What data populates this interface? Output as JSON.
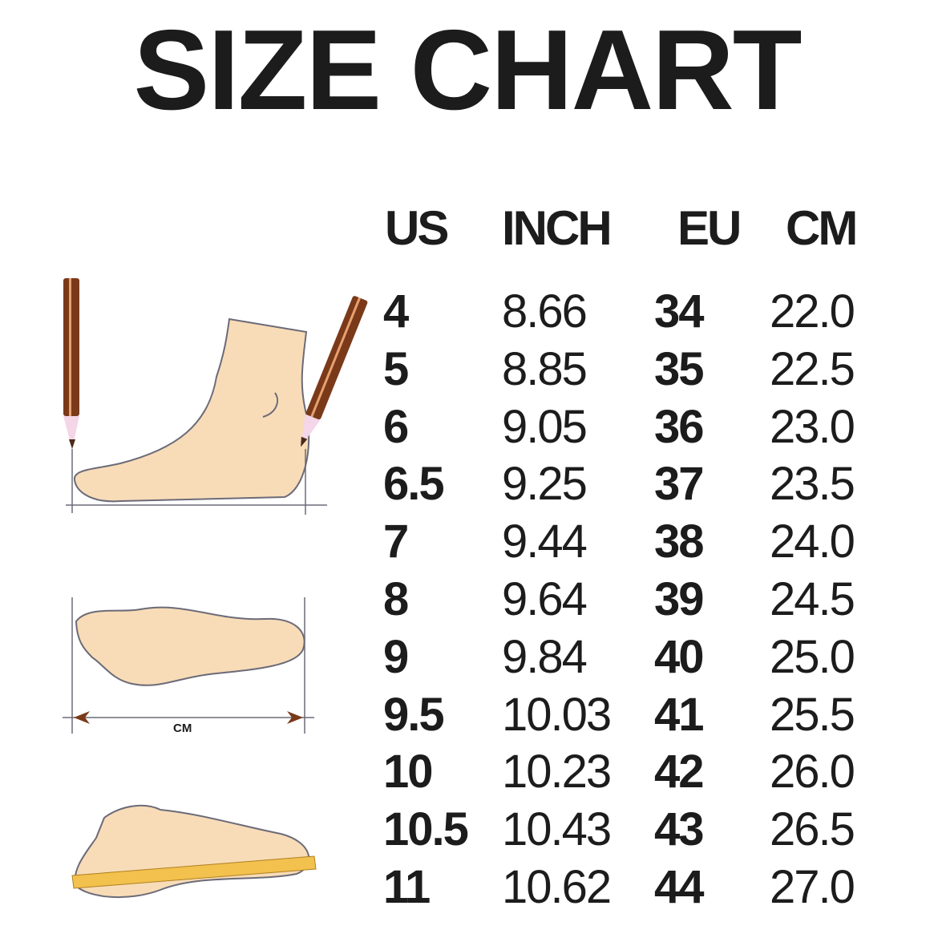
{
  "title": "SIZE CHART",
  "illustration": {
    "measure_label": "CM"
  },
  "chart_data": {
    "type": "table",
    "columns": [
      "US",
      "INCH",
      "EU",
      "CM"
    ],
    "rows": [
      [
        "4",
        "8.66",
        "34",
        "22.0"
      ],
      [
        "5",
        "8.85",
        "35",
        "22.5"
      ],
      [
        "6",
        "9.05",
        "36",
        "23.0"
      ],
      [
        "6.5",
        "9.25",
        "37",
        "23.5"
      ],
      [
        "7",
        "9.44",
        "38",
        "24.0"
      ],
      [
        "8",
        "9.64",
        "39",
        "24.5"
      ],
      [
        "9",
        "9.84",
        "40",
        "25.0"
      ],
      [
        "9.5",
        "10.03",
        "41",
        "25.5"
      ],
      [
        "10",
        "10.23",
        "42",
        "26.0"
      ],
      [
        "10.5",
        "10.43",
        "43",
        "26.5"
      ],
      [
        "11",
        "10.62",
        "44",
        "27.0"
      ]
    ]
  },
  "colors": {
    "text": "#1c1c1c",
    "foot": "#f8dcb8",
    "outline": "#6b6b78",
    "pencil": "#7a3a1a",
    "ruler": "#f2c14e"
  }
}
